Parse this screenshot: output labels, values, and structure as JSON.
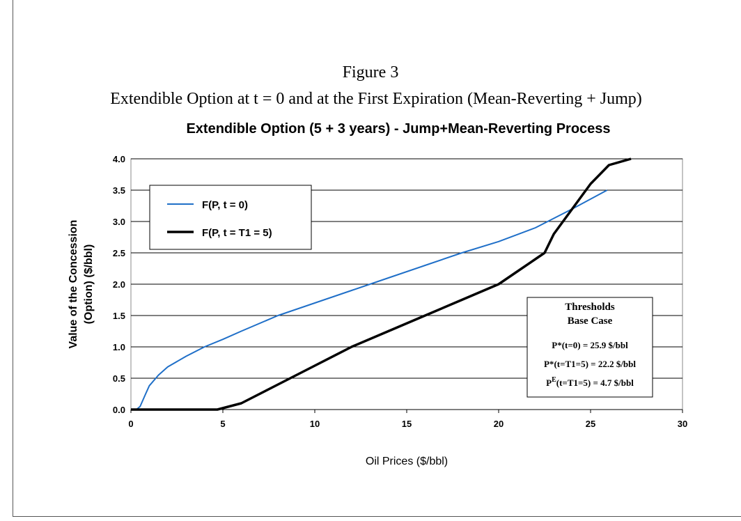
{
  "caption": {
    "number": "Figure 3",
    "text": "Extendible Option at t = 0 and at the First Expiration (Mean-Reverting + Jump)"
  },
  "chart_data": {
    "type": "line",
    "title": "Extendible Option (5 + 3 years) - Jump+Mean-Reverting Process",
    "xlabel": "Oil Prices ($/bbl)",
    "ylabel": [
      "Value of the Concession",
      "(Option) ($/bbl)"
    ],
    "xlim": [
      0,
      30
    ],
    "xticks": [
      0,
      5,
      10,
      15,
      20,
      25,
      30
    ],
    "ylim": [
      0,
      4
    ],
    "yticks": [
      {
        "value": 0,
        "label": "0.0"
      },
      {
        "value": 0.5,
        "label": "0.5"
      },
      {
        "value": 1,
        "label": "1.0"
      },
      {
        "value": 1.5,
        "label": "1.5"
      },
      {
        "value": 2,
        "label": "2.0"
      },
      {
        "value": 2.5,
        "label": "2.5"
      },
      {
        "value": 3,
        "label": "3.0"
      },
      {
        "value": 3.5,
        "label": "3.5"
      },
      {
        "value": 4,
        "label": "4.0"
      }
    ],
    "grid": true,
    "series": [
      {
        "name": "F(P, t = 0)",
        "color": "#1f6fc8",
        "width": 2,
        "x": [
          0.3,
          0.5,
          0.8,
          1,
          1.5,
          2,
          3,
          4,
          5,
          6,
          8,
          10,
          12,
          14,
          16,
          18,
          20,
          22,
          24,
          25.9
        ],
        "values": [
          0,
          0.05,
          0.25,
          0.38,
          0.55,
          0.68,
          0.85,
          1.0,
          1.12,
          1.25,
          1.5,
          1.7,
          1.9,
          2.1,
          2.3,
          2.5,
          2.68,
          2.9,
          3.2,
          3.5
        ]
      },
      {
        "name": "F(P, t = T1 = 5)",
        "color": "#000000",
        "width": 3.5,
        "x": [
          0,
          4.7,
          6,
          8,
          10,
          12,
          14,
          16,
          18,
          20,
          21,
          22,
          22.5,
          23,
          24,
          25,
          26,
          27.2
        ],
        "values": [
          0,
          0,
          0.1,
          0.4,
          0.7,
          1.0,
          1.25,
          1.5,
          1.75,
          2.0,
          2.2,
          2.4,
          2.5,
          2.8,
          3.2,
          3.6,
          3.9,
          4.0
        ]
      }
    ],
    "annotation": {
      "title": [
        "Thresholds",
        "Base Case"
      ],
      "lines": [
        {
          "base": "P*",
          "sup": "",
          "rest": "(t=0) = 25.9 $/bbl"
        },
        {
          "base": "P*",
          "sup": "",
          "rest": "(t=T1=5) = 22.2 $/bbl"
        },
        {
          "base": "P",
          "sup": "E",
          "rest": "(t=T1=5) = 4.7 $/bbl"
        }
      ]
    }
  }
}
